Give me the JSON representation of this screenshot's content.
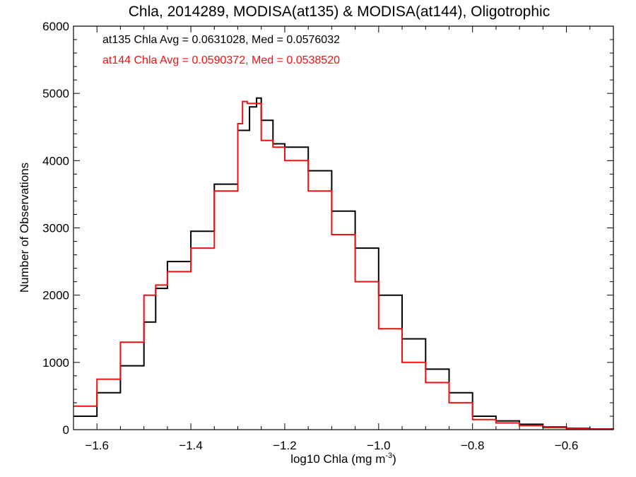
{
  "chart_data": {
    "type": "line",
    "title": "Chla, 2014289, MODISA(at135) & MODISA(at144), Oligotrophic",
    "xlabel": "log10 Chla (mg m",
    "xlabel_sup": "-3",
    "xlabel_end": ")",
    "ylabel": "Number of Observations",
    "xlim": [
      -1.65,
      -0.5
    ],
    "ylim": [
      0,
      6000
    ],
    "xticks": [
      -1.6,
      -1.4,
      -1.2,
      -1.0,
      -0.8,
      -0.6
    ],
    "xtick_labels": [
      "−1.6",
      "−1.4",
      "−1.2",
      "−1.0",
      "−0.8",
      "−0.6"
    ],
    "yticks": [
      0,
      1000,
      2000,
      3000,
      4000,
      5000,
      6000
    ],
    "ytick_labels": [
      "0",
      "1000",
      "2000",
      "3000",
      "4000",
      "5000",
      "6000"
    ],
    "grid": false,
    "annotations": [
      {
        "text": "at135 Chla Avg = 0.0631028, Med = 0.0576032",
        "color": "#000000"
      },
      {
        "text": "at144 Chla Avg = 0.0590372, Med = 0.0538520",
        "color": "#ee1111"
      }
    ],
    "series": [
      {
        "color": "#000000",
        "x": [
          -1.65,
          -1.6,
          -1.55,
          -1.5,
          -1.475,
          -1.45,
          -1.4,
          -1.35,
          -1.3,
          -1.275,
          -1.26,
          -1.25,
          -1.225,
          -1.2,
          -1.15,
          -1.1,
          -1.05,
          -1.0,
          -0.95,
          -0.9,
          -0.85,
          -0.8,
          -0.75,
          -0.7,
          -0.65,
          -0.6,
          -0.55,
          -0.5
        ],
        "y": [
          200,
          550,
          950,
          1600,
          2100,
          2500,
          2950,
          3650,
          4450,
          4800,
          4930,
          4600,
          4250,
          4200,
          3850,
          3250,
          2700,
          2000,
          1350,
          900,
          550,
          200,
          130,
          80,
          40,
          20,
          10,
          5
        ]
      },
      {
        "color": "#ee1111",
        "x": [
          -1.65,
          -1.6,
          -1.55,
          -1.5,
          -1.475,
          -1.45,
          -1.4,
          -1.35,
          -1.3,
          -1.29,
          -1.28,
          -1.25,
          -1.225,
          -1.2,
          -1.15,
          -1.1,
          -1.05,
          -1.0,
          -0.95,
          -0.9,
          -0.85,
          -0.8,
          -0.75,
          -0.7,
          -0.65,
          -0.6,
          -0.55,
          -0.5
        ],
        "y": [
          350,
          750,
          1300,
          2000,
          2150,
          2350,
          2700,
          3550,
          4550,
          4880,
          4850,
          4300,
          4200,
          4000,
          3550,
          2900,
          2200,
          1500,
          1000,
          700,
          400,
          150,
          100,
          60,
          30,
          15,
          8,
          5
        ]
      }
    ]
  }
}
